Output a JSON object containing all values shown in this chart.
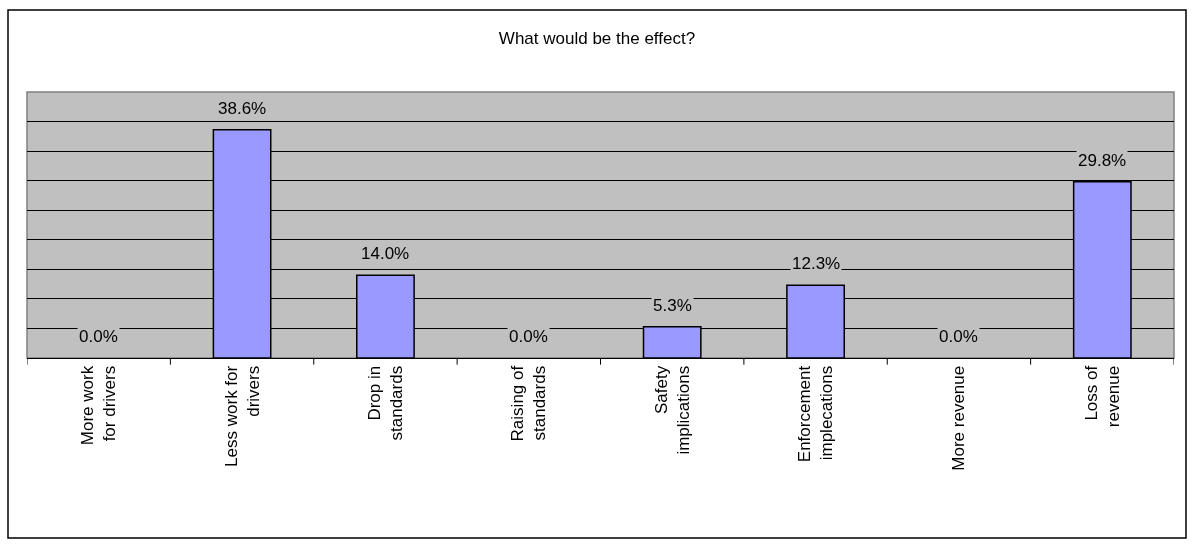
{
  "chart_data": {
    "type": "bar",
    "title": "What would be the effect?",
    "categories": [
      "More work\nfor drivers",
      "Less work for\ndrivers",
      "Drop in\nstandards",
      "Raising of\nstandards",
      "Safety\nimplications",
      "Enforcement\nimplecations",
      "More revenue",
      "Loss of\nrevenue"
    ],
    "values": [
      0.0,
      38.6,
      14.0,
      0.0,
      5.3,
      12.3,
      0.0,
      29.8
    ],
    "value_labels": [
      "0.0%",
      "38.6%",
      "14.0%",
      "0.0%",
      "5.3%",
      "12.3%",
      "0.0%",
      "29.8%"
    ],
    "color": "#9999ff",
    "ylim": [
      0,
      45
    ],
    "yticks": [
      {
        "value": 0,
        "label": null
      },
      {
        "value": 5,
        "label": null
      },
      {
        "value": 10,
        "label": null
      },
      {
        "value": 15,
        "label": null
      },
      {
        "value": 20,
        "label": null
      },
      {
        "value": 25,
        "label": null
      },
      {
        "value": 30,
        "label": null
      },
      {
        "value": 35,
        "label": null
      },
      {
        "value": 40,
        "label": null
      },
      {
        "value": 45,
        "label": null
      }
    ],
    "grid": "y"
  }
}
